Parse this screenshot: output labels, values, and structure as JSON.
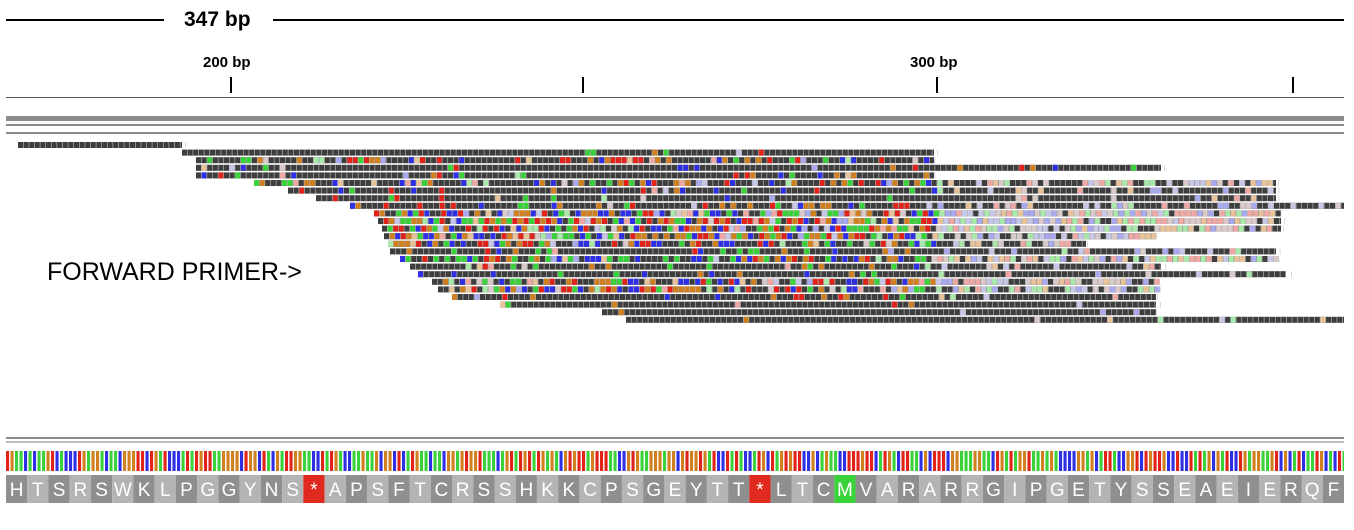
{
  "ruler": {
    "span_label": "347 bp",
    "ticks": [
      {
        "label": "200 bp"
      },
      {
        "label": ""
      },
      {
        "label": "300 bp"
      },
      {
        "label": ""
      }
    ]
  },
  "annotation": {
    "text": "FORWARD PRIMER->"
  },
  "amino_acids": {
    "text": "HTSRSWKLPGGYNS*APSFTCRSSHKKCPSGEYTT*LTCMVARARRGIPGETYSSEAEIERQF",
    "colors": {
      "default": "#8f8f8f",
      "default_alt": "#b4b4b4",
      "stop": "#e02a1f",
      "start": "#39d33a",
      "text": "#ffffff"
    }
  },
  "base_colors": {
    "A": "#3ad23a",
    "C": "#2f2fe6",
    "G": "#d1801f",
    "T": "#e2231a",
    "read": "#3e3e3e"
  }
}
